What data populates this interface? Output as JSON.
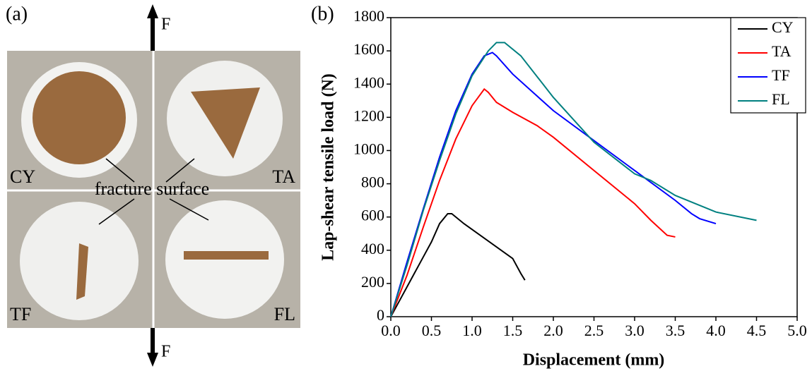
{
  "photo_panel": {
    "label": "(a)",
    "force_top": "F",
    "force_bottom": "F",
    "quadrants": [
      "CY",
      "TA",
      "TF",
      "FL"
    ],
    "annotation": "fracture surface"
  },
  "chart_data": {
    "type": "line",
    "panel_label": "(b)",
    "x_label": "Displacement (mm)",
    "y_label": "Lap-shear tensile load (N)",
    "xlim": [
      0,
      5
    ],
    "ylim": [
      0,
      1800
    ],
    "xticks": [
      {
        "value": 0,
        "label": "0.0"
      },
      {
        "value": 0.5,
        "label": "0.5"
      },
      {
        "value": 1,
        "label": "1.0"
      },
      {
        "value": 1.5,
        "label": "1.5"
      },
      {
        "value": 2,
        "label": "2.0"
      },
      {
        "value": 2.5,
        "label": "2.5"
      },
      {
        "value": 3,
        "label": "3.0"
      },
      {
        "value": 3.5,
        "label": "3.5"
      },
      {
        "value": 4,
        "label": "4.0"
      },
      {
        "value": 4.5,
        "label": "4.5"
      },
      {
        "value": 5,
        "label": "5.0"
      }
    ],
    "yticks": [
      0,
      200,
      400,
      600,
      800,
      1000,
      1200,
      1400,
      1600,
      1800
    ],
    "legend": "upper right",
    "series": [
      {
        "name": "CY",
        "color": "#000000",
        "x": [
          0,
          0.1,
          0.2,
          0.3,
          0.4,
          0.5,
          0.6,
          0.7,
          0.75,
          0.9,
          1.1,
          1.3,
          1.5,
          1.6,
          1.65
        ],
        "values": [
          0,
          90,
          180,
          270,
          360,
          450,
          560,
          620,
          620,
          560,
          490,
          420,
          350,
          260,
          220
        ]
      },
      {
        "name": "TA",
        "color": "#ff0000",
        "x": [
          0,
          0.2,
          0.4,
          0.6,
          0.8,
          1.0,
          1.15,
          1.2,
          1.3,
          1.5,
          1.8,
          2.0,
          2.5,
          3.0,
          3.2,
          3.4,
          3.5
        ],
        "values": [
          0,
          250,
          540,
          820,
          1070,
          1270,
          1370,
          1350,
          1290,
          1230,
          1150,
          1080,
          880,
          680,
          580,
          490,
          480
        ]
      },
      {
        "name": "TF",
        "color": "#0000ff",
        "x": [
          0,
          0.2,
          0.4,
          0.6,
          0.8,
          1.0,
          1.15,
          1.25,
          1.3,
          1.5,
          2.0,
          2.5,
          3.0,
          3.5,
          3.7,
          3.8,
          4.0
        ],
        "values": [
          0,
          330,
          650,
          960,
          1240,
          1460,
          1570,
          1590,
          1570,
          1460,
          1240,
          1060,
          880,
          700,
          620,
          590,
          560
        ]
      },
      {
        "name": "FL",
        "color": "#008080",
        "x": [
          0,
          0.2,
          0.4,
          0.6,
          0.8,
          1.0,
          1.2,
          1.3,
          1.4,
          1.6,
          2.0,
          2.5,
          3.0,
          3.2,
          3.5,
          4.0,
          4.5
        ],
        "values": [
          0,
          310,
          640,
          940,
          1220,
          1450,
          1600,
          1650,
          1650,
          1570,
          1320,
          1050,
          860,
          820,
          730,
          630,
          580
        ]
      }
    ]
  }
}
